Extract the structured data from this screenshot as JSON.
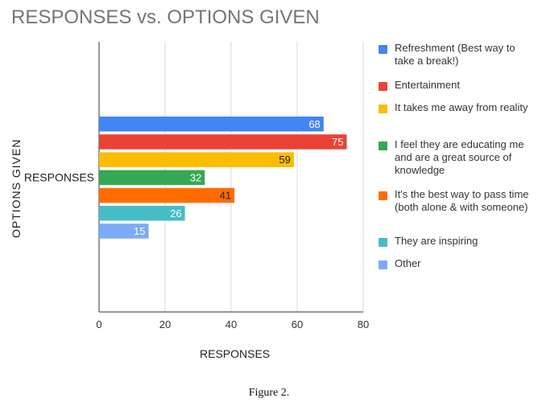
{
  "chart_data": {
    "type": "bar",
    "orientation": "horizontal",
    "title": "RESPONSES vs. OPTIONS GIVEN",
    "xlabel": "RESPONSES",
    "ylabel": "OPTIONS GIVEN",
    "category_label": "RESPONSES",
    "xlim": [
      0,
      80
    ],
    "xticks": [
      0,
      20,
      40,
      60,
      80
    ],
    "grid": true,
    "legend_position": "right",
    "series": [
      {
        "name": "Refreshment (Best way to take a break!)",
        "value": 68,
        "color": "#4285F4"
      },
      {
        "name": "Entertainment",
        "value": 75,
        "color": "#EA4335"
      },
      {
        "name": "It takes me away from reality",
        "value": 59,
        "color": "#FBBC04"
      },
      {
        "name": "I feel they are educating me and are a great source of knowledge",
        "value": 32,
        "color": "#34A853"
      },
      {
        "name": "It's the best way to pass time (both alone & with someone)",
        "value": 41,
        "color": "#FF6D01"
      },
      {
        "name": "They are inspiring",
        "value": 26,
        "color": "#46BDC6"
      },
      {
        "name": "Other",
        "value": 15,
        "color": "#7BAAF7"
      }
    ]
  },
  "figure_caption": "Figure 2."
}
